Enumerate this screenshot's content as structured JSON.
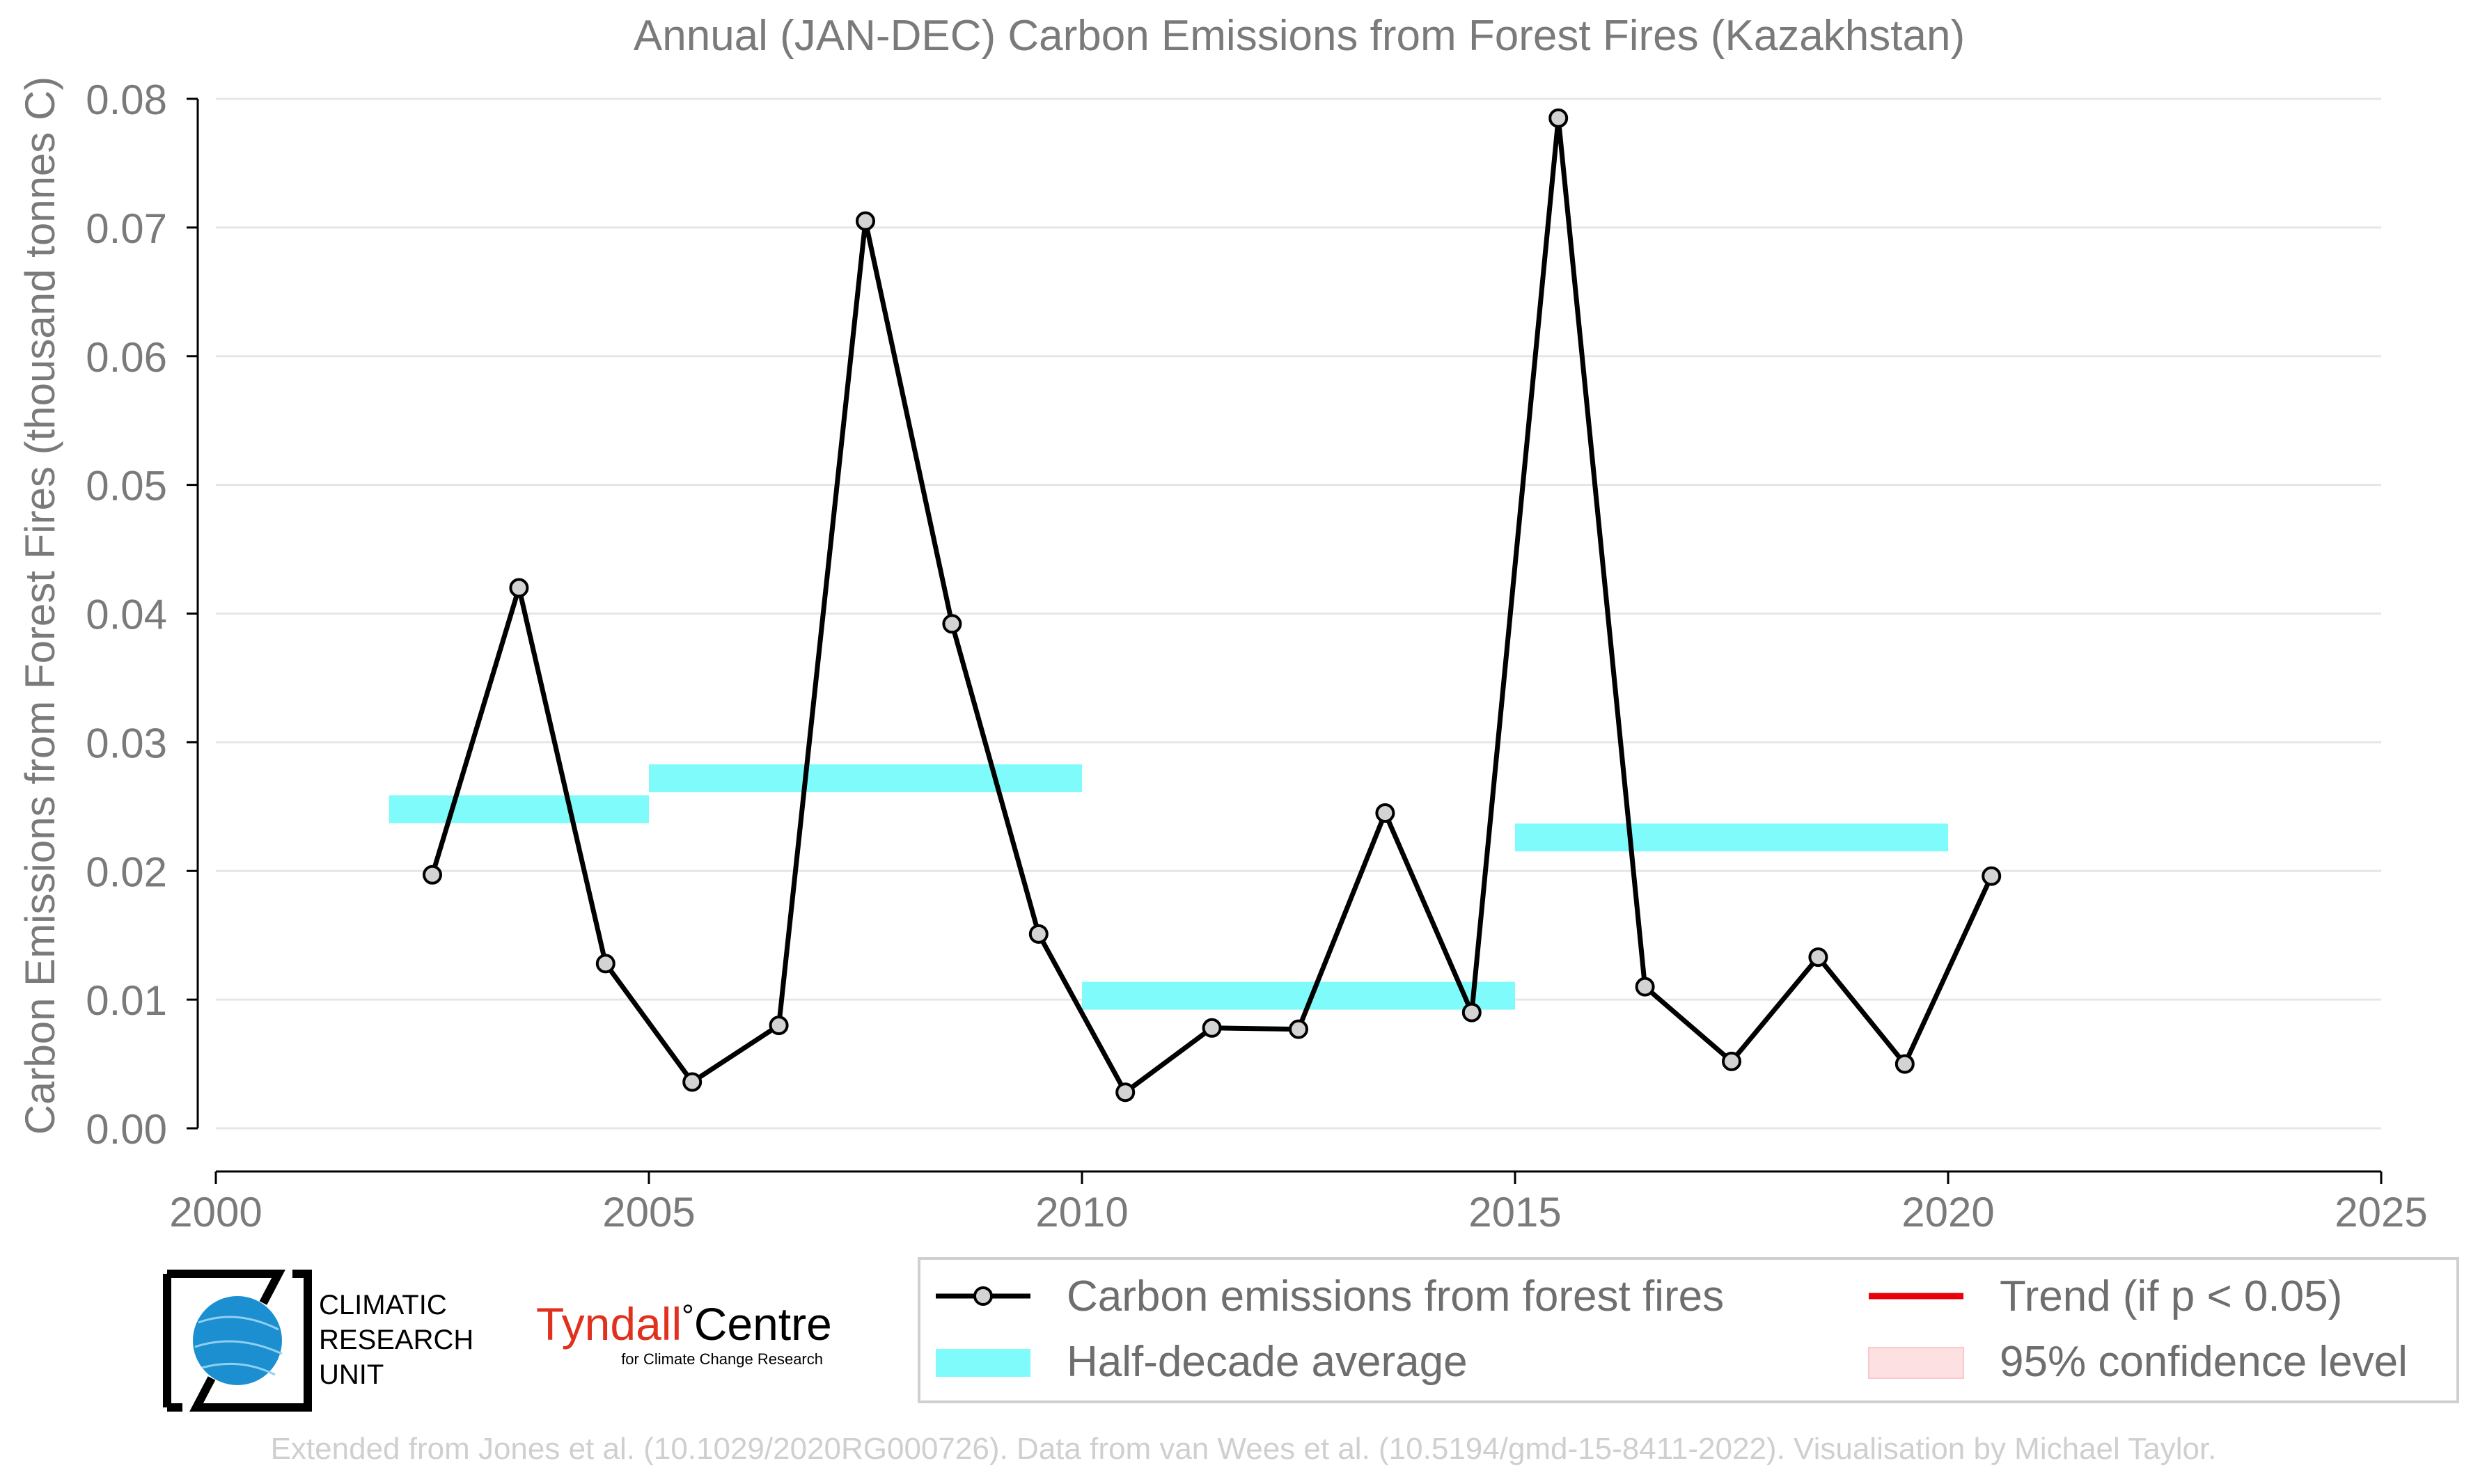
{
  "chart_data": {
    "type": "line",
    "title": "Annual (JAN-DEC) Carbon Emissions from Forest Fires (Kazakhstan)",
    "xlabel": "",
    "ylabel": "Carbon Emissions from Forest Fires (thousand tonnes C)",
    "xlim": [
      2000,
      2025
    ],
    "ylim": [
      0,
      0.08
    ],
    "x_ticks": [
      "2000",
      "2005",
      "2010",
      "2015",
      "2020",
      "2025"
    ],
    "y_ticks": [
      "0.00",
      "0.01",
      "0.02",
      "0.03",
      "0.04",
      "0.05",
      "0.06",
      "0.07",
      "0.08"
    ],
    "grid": "horizontal",
    "legend_position": "bottom-right",
    "series": [
      {
        "name": "Carbon emissions from forest fires",
        "color": "#000000",
        "marker_fill": "#d3d3d3",
        "x": [
          2002.5,
          2003.5,
          2004.5,
          2005.5,
          2006.5,
          2007.5,
          2008.5,
          2009.5,
          2010.5,
          2011.5,
          2012.5,
          2013.5,
          2014.5,
          2015.5,
          2016.5,
          2017.5,
          2018.5,
          2019.5,
          2020.5
        ],
        "values": [
          0.0197,
          0.042,
          0.0128,
          0.0036,
          0.008,
          0.0705,
          0.0392,
          0.0151,
          0.0028,
          0.0078,
          0.0077,
          0.0245,
          0.009,
          0.0785,
          0.011,
          0.0052,
          0.0133,
          0.005,
          0.0196
        ]
      }
    ],
    "half_decade_average": {
      "name": "Half-decade average",
      "color": "#7ffbfb",
      "segments": [
        {
          "start": 2002,
          "end": 2005,
          "value": 0.0248
        },
        {
          "start": 2005,
          "end": 2010,
          "value": 0.0272
        },
        {
          "start": 2010,
          "end": 2015,
          "value": 0.0103
        },
        {
          "start": 2015,
          "end": 2020,
          "value": 0.0226
        }
      ]
    },
    "legend": [
      {
        "label": "Carbon emissions from forest fires",
        "kind": "line-marker",
        "color": "#000000"
      },
      {
        "label": "Half-decade average",
        "kind": "band",
        "color": "#7ffbfb"
      },
      {
        "label": "Trend (if p < 0.05)",
        "kind": "line",
        "color": "#e8000b"
      },
      {
        "label": "95% confidence level",
        "kind": "patch",
        "color": "#fde0e1"
      }
    ]
  },
  "logos": {
    "cru_lines": [
      "CLIMATIC",
      "RESEARCH",
      "UNIT"
    ],
    "tyndall_name": "Tyndall",
    "tyndall_degree": "°",
    "tyndall_centre": "Centre",
    "tyndall_sub": "for Climate Change Research",
    "tyndall_color": "#e0301e",
    "cru_globe_color": "#1b8fd0"
  },
  "footer": {
    "credit": "Extended from Jones et al. (10.1029/2020RG000726). Data from van Wees et al. (10.5194/gmd-15-8411-2022). Visualisation by Michael Taylor."
  }
}
